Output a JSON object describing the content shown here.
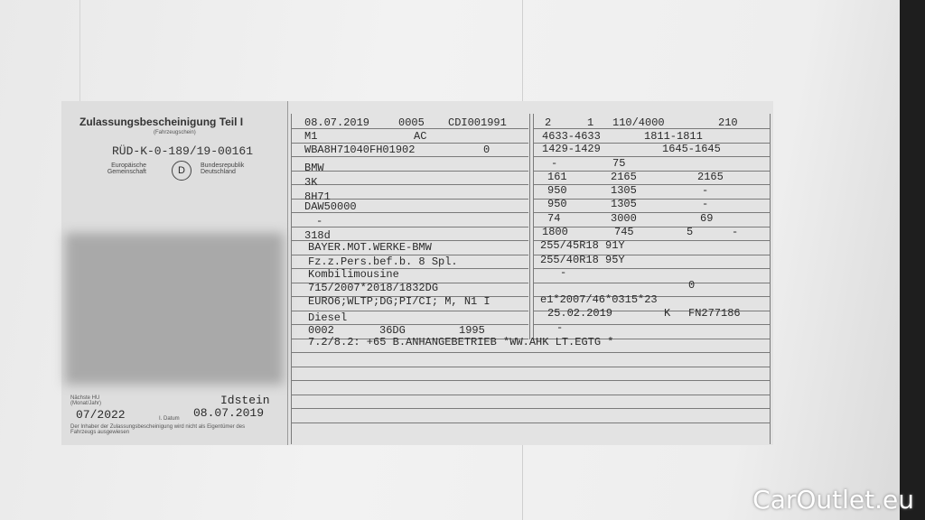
{
  "left": {
    "title": "Zulassungsbescheinigung Teil I",
    "subtitle": "(Fahrzeugschein)",
    "number": "RÜD-K-0-189/19-00161",
    "eu": "Europäische Gemeinschaft",
    "country_code": "D",
    "country": "Bundesrepublik Deutschland",
    "hu_label": "Nächste HU (Monat/Jahr)",
    "hu_value": "07/2022",
    "place": "Idstein",
    "date_label": "I. Datum",
    "date": "08.07.2019",
    "notice": "Der Inhaber der Zulassungsbescheinigung wird nicht als Eigentümer des Fahrzeugs ausgewiesen"
  },
  "middle": {
    "rows": [
      [
        "08.07.2019",
        "0005",
        "CDI001991"
      ],
      [
        "M1",
        "AC"
      ],
      [
        "WBA8H71040FH01902",
        "0"
      ],
      [
        "BMW"
      ],
      [
        "3K"
      ],
      [
        "8H71"
      ],
      [
        "DAW50000"
      ],
      [
        "-"
      ],
      [
        "318d"
      ],
      [
        "BAYER.MOT.WERKE-BMW"
      ],
      [
        "Fz.z.Pers.bef.b. 8 Spl."
      ],
      [
        "Kombilimousine"
      ],
      [
        "715/2007*2018/1832DG"
      ],
      [
        "EURO6;WLTP;DG;PI/CI; M, N1 I"
      ],
      [
        "Diesel"
      ],
      [
        "0002",
        "36DG",
        "1995"
      ],
      [
        "7.2/8.2: +65 B.ANHANGEBETRIEB *WW.AHK LT.EGTG *"
      ]
    ]
  },
  "right": {
    "rows": [
      [
        "2",
        "1",
        "110/4000",
        "210"
      ],
      [
        "4633-4633",
        "1811-1811"
      ],
      [
        "1429-1429",
        "1645-1645"
      ],
      [
        "-",
        "75"
      ],
      [
        "161",
        "2165",
        "2165"
      ],
      [
        "950",
        "1305",
        "-"
      ],
      [
        "950",
        "1305",
        "-"
      ],
      [
        "74",
        "3000",
        "69"
      ],
      [
        "1800",
        "745",
        "5",
        "-"
      ],
      [
        "255/45R18 91Y"
      ],
      [
        "255/40R18 95Y"
      ],
      [
        "-"
      ],
      [
        "0"
      ],
      [
        "e1*2007/46*0315*23"
      ],
      [
        "25.02.2019",
        "K",
        "FN277186"
      ],
      [
        "-"
      ]
    ]
  },
  "watermark": "CarOutlet.eu"
}
